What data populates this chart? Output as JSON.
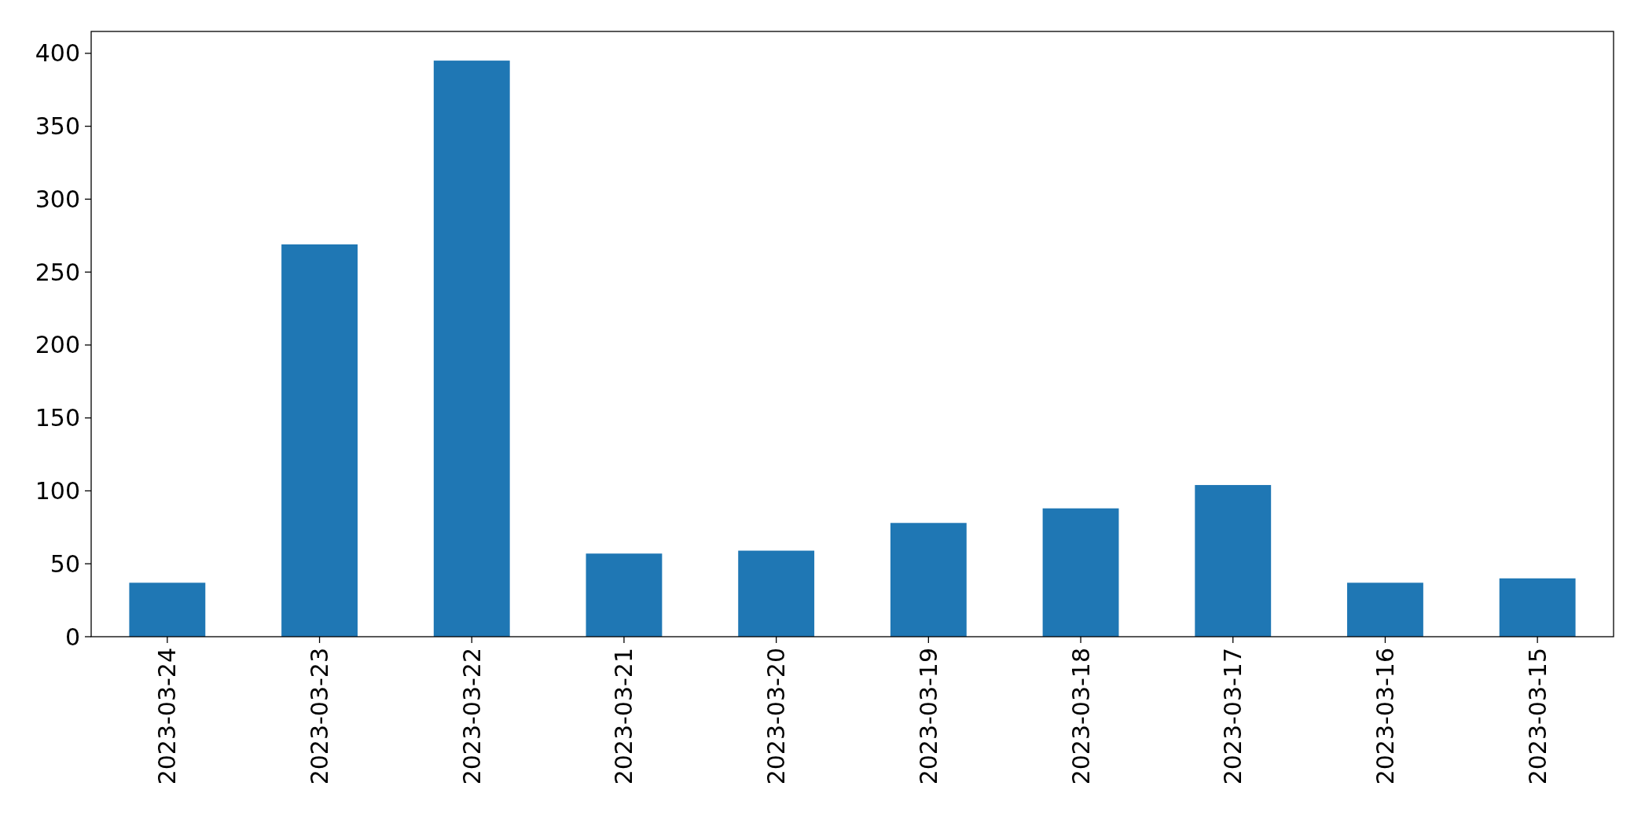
{
  "chart_data": {
    "type": "bar",
    "categories": [
      "2023-03-24",
      "2023-03-23",
      "2023-03-22",
      "2023-03-21",
      "2023-03-20",
      "2023-03-19",
      "2023-03-18",
      "2023-03-17",
      "2023-03-16",
      "2023-03-15"
    ],
    "values": [
      37,
      269,
      395,
      57,
      59,
      78,
      88,
      104,
      37,
      40
    ],
    "color": "#1f77b4",
    "ylim": [
      0,
      415
    ],
    "yticks": [
      0,
      50,
      100,
      150,
      200,
      250,
      300,
      350,
      400
    ],
    "grid": false
  }
}
